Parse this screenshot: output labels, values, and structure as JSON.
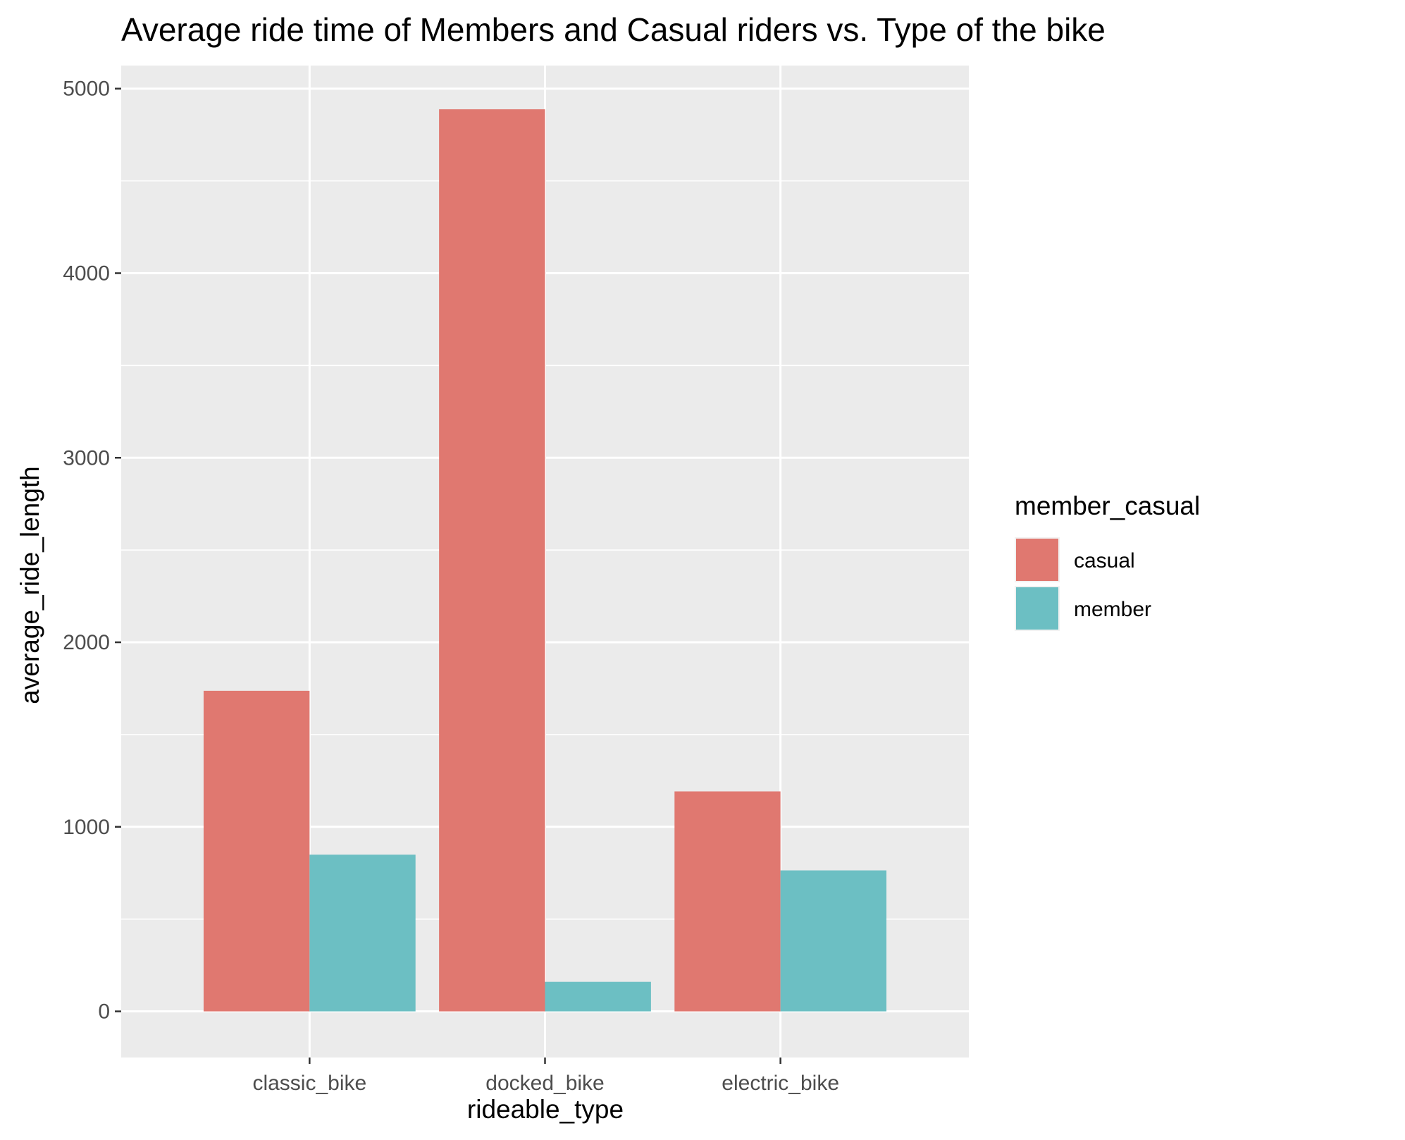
{
  "chart_data": {
    "type": "bar",
    "title": "Average ride time of Members and Casual riders vs. Type of the bike",
    "xlabel": "rideable_type",
    "ylabel": "average_ride_length",
    "categories": [
      "classic_bike",
      "docked_bike",
      "electric_bike"
    ],
    "series": [
      {
        "name": "casual",
        "color": "#E07870",
        "values": [
          1737,
          4888,
          1192
        ]
      },
      {
        "name": "member",
        "color": "#6CBFC3",
        "values": [
          849,
          160,
          764
        ]
      }
    ],
    "ylim": [
      -250,
      5125
    ],
    "yticks": [
      0,
      1000,
      2000,
      3000,
      4000,
      5000
    ],
    "yticks_labels": [
      "0",
      "1000",
      "2000",
      "3000",
      "4000",
      "5000"
    ],
    "grid": true,
    "legend": {
      "title": "member_casual",
      "position": "right"
    },
    "panel_background": "#EBEBEB"
  }
}
